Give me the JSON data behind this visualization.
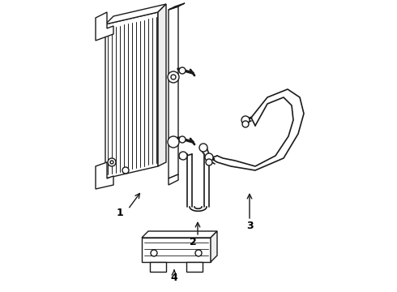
{
  "background_color": "#ffffff",
  "line_color": "#1a1a1a",
  "line_width": 1.0,
  "label_color": "#000000",
  "fig_width": 4.9,
  "fig_height": 3.6,
  "dpi": 100
}
